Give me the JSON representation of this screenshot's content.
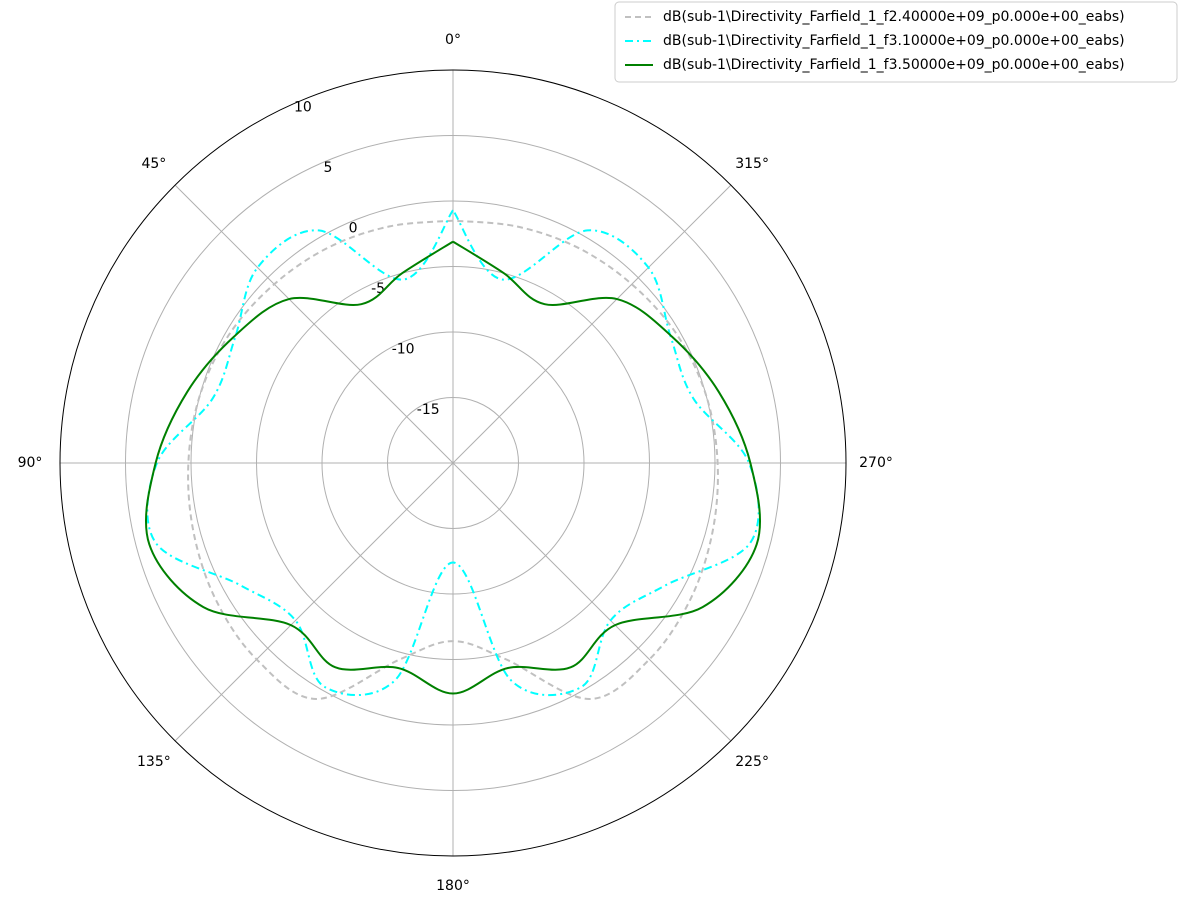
{
  "chart_data": {
    "type": "polar",
    "theta": [
      0,
      15,
      30,
      45,
      60,
      75,
      90,
      105,
      120,
      135,
      150,
      165,
      180,
      195,
      210,
      225,
      240,
      255,
      270,
      285,
      300,
      315,
      330,
      345,
      360
    ],
    "series": [
      {
        "name": "dB(sub-1\\Directivity_Farfield_1_f2.40000e+09_p0.000e+00_eabs)",
        "color": "#c0c0c0",
        "dash": "dashed",
        "values": [
          -1.5,
          -1.3,
          -1.0,
          -0.7,
          -0.3,
          0.0,
          0.2,
          0.5,
          0.9,
          1.2,
          0.8,
          -4.5,
          -6.4,
          -4.5,
          0.8,
          1.2,
          0.9,
          0.5,
          0.2,
          0.0,
          -0.3,
          -0.7,
          -1.0,
          -1.3,
          -1.5
        ]
      },
      {
        "name": "dB(sub-1\\Directivity_Farfield_1_f3.10000e+09_p0.000e+00_eabs)",
        "color": "#00ffff",
        "dash": "dashdot",
        "values": [
          -0.7,
          -5.5,
          0.5,
          1.1,
          -0.8,
          -1.0,
          2.6,
          3.5,
          -1.3,
          -3.0,
          -0.3,
          -2.8,
          -12.4,
          -2.8,
          -0.3,
          -3.0,
          -1.3,
          3.5,
          2.6,
          -1.0,
          -0.8,
          1.1,
          0.5,
          -5.5,
          -0.7
        ]
      },
      {
        "name": "dB(sub-1\\Directivity_Farfield_1_f3.50000e+09_p0.000e+00_eabs)",
        "color": "#008000",
        "dash": "solid",
        "values": [
          -3.1,
          -5.0,
          -6.0,
          -2.3,
          -0.7,
          1.0,
          2.7,
          4.0,
          2.0,
          -2.5,
          -2.0,
          -3.8,
          -2.4,
          -3.8,
          -2.0,
          -2.5,
          2.0,
          4.0,
          2.7,
          1.0,
          -0.7,
          -2.3,
          -6.0,
          -5.0,
          -3.1
        ]
      }
    ],
    "rlim": [
      -20,
      10
    ],
    "rticks": [
      -15,
      -10,
      -5,
      0,
      5,
      10
    ],
    "thetaticks": [
      {
        "value": 0,
        "label": "0°"
      },
      {
        "value": 45,
        "label": "45°"
      },
      {
        "value": 90,
        "label": "90°"
      },
      {
        "value": 135,
        "label": "135°"
      },
      {
        "value": 180,
        "label": "180°"
      },
      {
        "value": 225,
        "label": "225°"
      },
      {
        "value": 270,
        "label": "270°"
      },
      {
        "value": 315,
        "label": "315°"
      }
    ],
    "grid": true,
    "legend": "upper right"
  }
}
